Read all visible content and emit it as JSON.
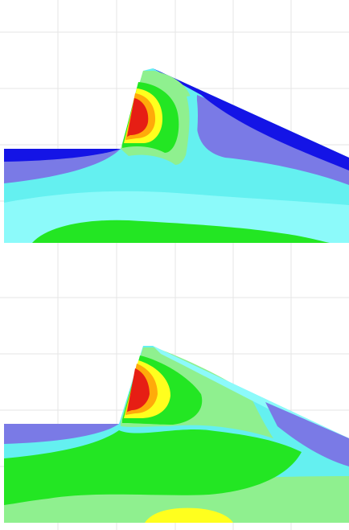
{
  "figure": {
    "panels": [
      {
        "id": "top"
      },
      {
        "id": "bottom"
      }
    ],
    "colors": {
      "background": "#ffffff",
      "grid": "#e6e6e6",
      "blue": "#1414e6",
      "slate": "#7a7ae6",
      "cyan": "#64f0f0",
      "light_cyan": "#8cfafa",
      "light_green": "#8ff08f",
      "green": "#23e623",
      "yellow": "#ffff1e",
      "orange": "#ffaa0a",
      "red": "#e61e14"
    }
  }
}
